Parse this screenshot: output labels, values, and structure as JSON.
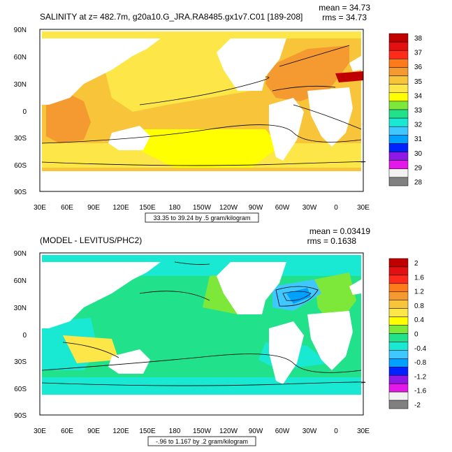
{
  "panels": [
    {
      "id": "top",
      "title": "SALINITY at z= 482.7m, g20a10.G_JRA.RA8485.gx1v7.C01 [189-208]",
      "stats": {
        "mean": "mean = 34.73",
        "rms": "rms = 34.73"
      },
      "subtitle": "33.35 to 39.24 by .5 gram/kilogram",
      "lat_labels": [
        "90N",
        "60N",
        "30N",
        "0",
        "30S",
        "60S",
        "90S"
      ],
      "lon_labels": [
        "30E",
        "60E",
        "90E",
        "120E",
        "150E",
        "180",
        "150W",
        "120W",
        "90W",
        "60W",
        "30W",
        "0",
        "30E"
      ],
      "colorbar": {
        "labels": [
          "38",
          "37",
          "36",
          "35",
          "34",
          "33",
          "32",
          "31",
          "30",
          "29",
          "28"
        ],
        "colors": [
          "#c00000",
          "#e21010",
          "#ff2b1a",
          "#ff7a1a",
          "#f59a30",
          "#f8c43a",
          "#fde648",
          "#ffff00",
          "#7ee83a",
          "#21e28a",
          "#19e8d2",
          "#3fc8ff",
          "#00a0ff",
          "#0022ff",
          "#9018e6",
          "#e418e8",
          "#f2f2f2",
          "#808080"
        ]
      }
    },
    {
      "id": "bottom",
      "title": "(MODEL - LEVITUS/PHC2)",
      "stats": {
        "mean": "mean = 0.03419",
        "rms": "rms = 0.1638"
      },
      "subtitle": "-.96 to 1.167 by .2 gram/kilogram",
      "lat_labels": [
        "90N",
        "60N",
        "30N",
        "0",
        "30S",
        "60S",
        "90S"
      ],
      "lon_labels": [
        "30E",
        "60E",
        "90E",
        "120E",
        "150E",
        "180",
        "150W",
        "120W",
        "90W",
        "60W",
        "30W",
        "0",
        "30E"
      ],
      "colorbar": {
        "labels": [
          "2",
          "1.6",
          "1.2",
          "0.8",
          "0.4",
          "0",
          "-0.4",
          "-0.8",
          "-1.2",
          "-1.6",
          "-2"
        ],
        "colors": [
          "#c00000",
          "#e21010",
          "#ff2b1a",
          "#ff7a1a",
          "#f59a30",
          "#f8c43a",
          "#fde648",
          "#ffff00",
          "#7ee83a",
          "#21e28a",
          "#19e8d2",
          "#3fc8ff",
          "#00a0ff",
          "#0022ff",
          "#9018e6",
          "#e418e8",
          "#f2f2f2",
          "#808080"
        ]
      }
    }
  ]
}
